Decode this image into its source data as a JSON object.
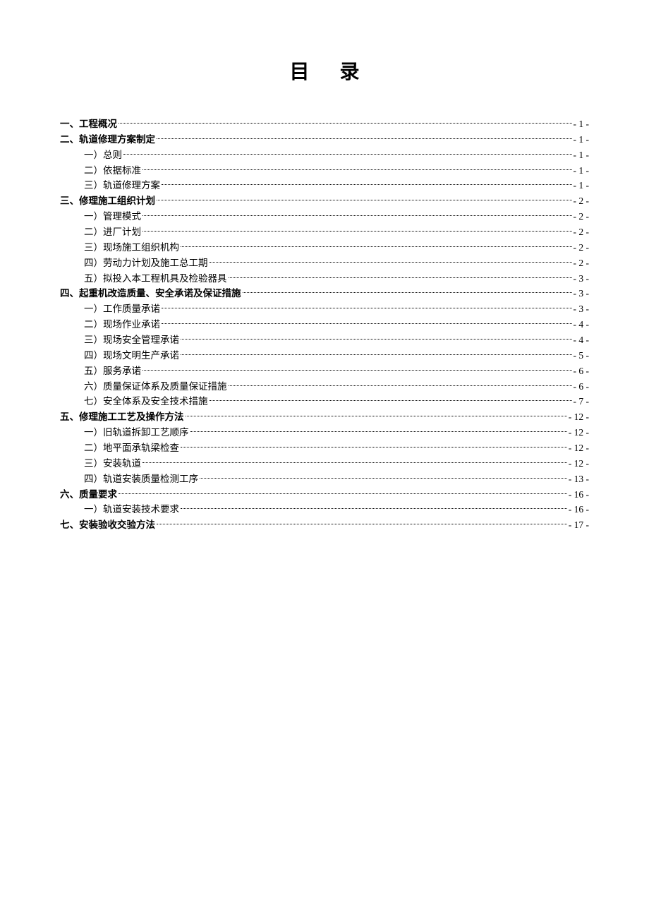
{
  "title": "目 录",
  "title_fontsize": 28,
  "body_fontsize": 13.5,
  "background_color": "#ffffff",
  "text_color": "#000000",
  "entries": [
    {
      "level": 0,
      "label": "一、工程概况",
      "page": "- 1 -"
    },
    {
      "level": 0,
      "label": "二、轨道修理方案制定",
      "page": "- 1 -"
    },
    {
      "level": 1,
      "label": "一）总则",
      "page": "- 1 -"
    },
    {
      "level": 1,
      "label": "二）依据标准",
      "page": "- 1 -"
    },
    {
      "level": 1,
      "label": "三）轨道修理方案",
      "page": "- 1 -"
    },
    {
      "level": 0,
      "label": "三、修理施工组织计划",
      "page": "- 2 -"
    },
    {
      "level": 1,
      "label": "一）管理模式",
      "page": "- 2 -"
    },
    {
      "level": 1,
      "label": "二）进厂计划",
      "page": "- 2 -"
    },
    {
      "level": 1,
      "label": "三）现场施工组织机构",
      "page": "- 2 -"
    },
    {
      "level": 1,
      "label": "四）劳动力计划及施工总工期",
      "page": "- 2 -"
    },
    {
      "level": 1,
      "label": "五）拟投入本工程机具及检验器具",
      "page": "- 3 -"
    },
    {
      "level": 0,
      "label": "四、起重机改造质量、安全承诺及保证措施",
      "page": "- 3 -"
    },
    {
      "level": 1,
      "label": "一）工作质量承诺",
      "page": "- 3 -"
    },
    {
      "level": 1,
      "label": "二）现场作业承诺",
      "page": "- 4 -"
    },
    {
      "level": 1,
      "label": "三）现场安全管理承诺",
      "page": "- 4 -"
    },
    {
      "level": 1,
      "label": "四）现场文明生产承诺",
      "page": "- 5 -"
    },
    {
      "level": 1,
      "label": "五）服务承诺",
      "page": "- 6 -"
    },
    {
      "level": 1,
      "label": "六）质量保证体系及质量保证措施",
      "page": "- 6 -"
    },
    {
      "level": 1,
      "label": "七）安全体系及安全技术措施",
      "page": "- 7 -"
    },
    {
      "level": 0,
      "label": "五、修理施工工艺及操作方法",
      "page": "- 12 -"
    },
    {
      "level": 1,
      "label": "一）旧轨道拆卸工艺顺序",
      "page": "- 12 -"
    },
    {
      "level": 1,
      "label": "二）地平面承轨梁检查",
      "page": "- 12 -"
    },
    {
      "level": 1,
      "label": "三）安装轨道",
      "page": "- 12 -"
    },
    {
      "level": 1,
      "label": "四）轨道安装质量检测工序",
      "page": "- 13 -"
    },
    {
      "level": 0,
      "label": "六、质量要求",
      "page": "- 16 -"
    },
    {
      "level": 1,
      "label": "一）轨道安装技术要求",
      "page": "- 16 -"
    },
    {
      "level": 0,
      "label": "七、安装验收交验方法",
      "page": "- 17 -"
    }
  ]
}
